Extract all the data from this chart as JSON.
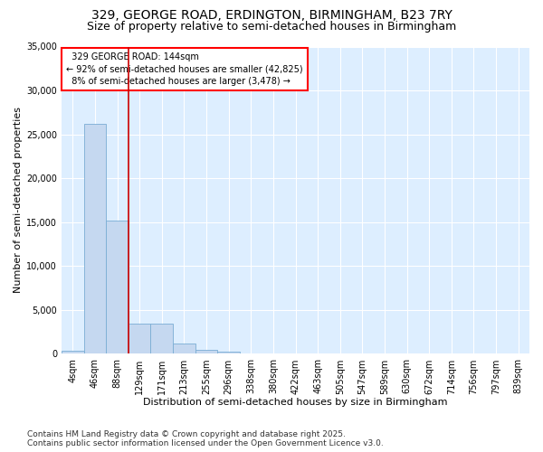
{
  "title1": "329, GEORGE ROAD, ERDINGTON, BIRMINGHAM, B23 7RY",
  "title2": "Size of property relative to semi-detached houses in Birmingham",
  "xlabel": "Distribution of semi-detached houses by size in Birmingham",
  "ylabel": "Number of semi-detached properties",
  "categories": [
    "4sqm",
    "46sqm",
    "88sqm",
    "129sqm",
    "171sqm",
    "213sqm",
    "255sqm",
    "296sqm",
    "338sqm",
    "380sqm",
    "422sqm",
    "463sqm",
    "505sqm",
    "547sqm",
    "589sqm",
    "630sqm",
    "672sqm",
    "714sqm",
    "756sqm",
    "797sqm",
    "839sqm"
  ],
  "values": [
    400,
    26200,
    15200,
    3400,
    3400,
    1200,
    500,
    300,
    0,
    0,
    0,
    0,
    0,
    0,
    0,
    0,
    0,
    0,
    0,
    0,
    0
  ],
  "bar_color": "#c5d8f0",
  "bar_edgecolor": "#7aadd4",
  "plot_bg_color": "#ddeeff",
  "figure_bg_color": "#ffffff",
  "grid_color": "#ffffff",
  "vline_color": "#cc0000",
  "vline_pos": 2.5,
  "property_label": "329 GEORGE ROAD: 144sqm",
  "pct_smaller": "92%",
  "pct_smaller_count": "42,825",
  "pct_larger": "8%",
  "pct_larger_count": "3,478",
  "ylim": [
    0,
    35000
  ],
  "yticks": [
    0,
    5000,
    10000,
    15000,
    20000,
    25000,
    30000,
    35000
  ],
  "footnote": "Contains HM Land Registry data © Crown copyright and database right 2025.\nContains public sector information licensed under the Open Government Licence v3.0.",
  "title_fontsize": 10,
  "subtitle_fontsize": 9,
  "label_fontsize": 8,
  "tick_fontsize": 7,
  "annot_fontsize": 7,
  "footnote_fontsize": 6.5
}
